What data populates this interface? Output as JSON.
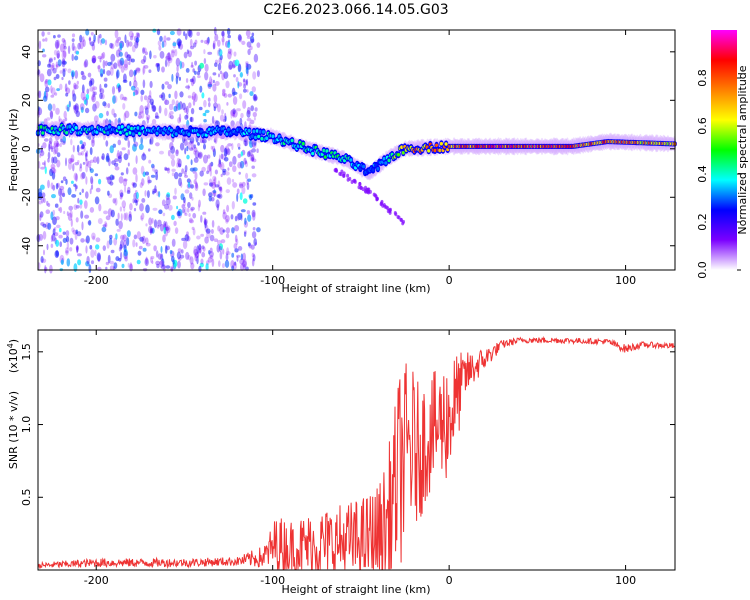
{
  "title": "C2E6.2023.066.14.05.G03",
  "chart_data": [
    {
      "type": "heatmap",
      "xlabel": "Height of straight line (km)",
      "ylabel": "Frequency (Hz)",
      "xlim": [
        -233,
        128
      ],
      "ylim": [
        -50,
        49
      ],
      "x_ticks": [
        -200,
        -100,
        0,
        100
      ],
      "x_tick_labels": [
        "-200",
        "-100",
        "0",
        "100"
      ],
      "y_ticks": [
        -40,
        -20,
        0,
        20,
        40
      ],
      "y_tick_labels": [
        "-40",
        "-20",
        "0",
        "20",
        "40"
      ],
      "colorbar": {
        "label": "Normalized spectral amplitude",
        "range": [
          0,
          1
        ],
        "ticks": [
          0.0,
          0.2,
          0.4,
          0.6,
          0.8
        ],
        "tick_labels": [
          "0.0",
          "0.2",
          "0.4",
          "0.6",
          "0.8"
        ],
        "colors": [
          "#ffffff",
          "#7b00ff",
          "#0000ff",
          "#00ffff",
          "#00ff00",
          "#ffff00",
          "#ff8000",
          "#ff0000",
          "#ff00ff"
        ]
      },
      "ridge": [
        {
          "x": -233,
          "y": 8,
          "amp": 0.45
        },
        {
          "x": -200,
          "y": 8,
          "amp": 0.4
        },
        {
          "x": -160,
          "y": 7,
          "amp": 0.35
        },
        {
          "x": -120,
          "y": 7,
          "amp": 0.35
        },
        {
          "x": -100,
          "y": 5,
          "amp": 0.4
        },
        {
          "x": -80,
          "y": 0,
          "amp": 0.45
        },
        {
          "x": -60,
          "y": -4,
          "amp": 0.45
        },
        {
          "x": -45,
          "y": -10,
          "amp": 0.3
        },
        {
          "x": -35,
          "y": -4,
          "amp": 0.4
        },
        {
          "x": -25,
          "y": 0,
          "amp": 0.75
        },
        {
          "x": 0,
          "y": 1,
          "amp": 0.8
        },
        {
          "x": 30,
          "y": 1,
          "amp": 0.9
        },
        {
          "x": 70,
          "y": 1,
          "amp": 0.85
        },
        {
          "x": 90,
          "y": 3,
          "amp": 0.8
        },
        {
          "x": 128,
          "y": 2,
          "amp": 0.7
        }
      ],
      "branch": [
        {
          "x": -65,
          "y": -8
        },
        {
          "x": -45,
          "y": -18
        },
        {
          "x": -25,
          "y": -31
        }
      ]
    },
    {
      "type": "line",
      "xlabel": "Height of straight line (km)",
      "ylabel": "SNR (10 * v/v)",
      "y_multiplier": "(x10",
      "y_multiplier_exp": "4",
      "xlim": [
        -233,
        128
      ],
      "ylim": [
        0,
        1.65
      ],
      "x_ticks": [
        -200,
        -100,
        0,
        100
      ],
      "x_tick_labels": [
        "-200",
        "-100",
        "0",
        "100"
      ],
      "y_ticks": [
        0.5,
        1.0,
        1.5
      ],
      "y_tick_labels": [
        "0.5",
        "1.0",
        "1.5"
      ],
      "color": "#ee3333",
      "series": [
        {
          "x": [
            -233,
            -200,
            -150,
            -120,
            -105,
            -98,
            -90,
            -70,
            -50,
            -40,
            -35,
            -30,
            -28,
            -22,
            -18,
            -10,
            -5,
            0,
            5,
            10,
            20,
            30,
            40,
            60,
            90,
            100,
            110,
            128
          ],
          "y": [
            0.03,
            0.05,
            0.05,
            0.06,
            0.09,
            0.18,
            0.15,
            0.18,
            0.2,
            0.24,
            0.3,
            0.6,
            0.7,
            0.85,
            0.8,
            0.95,
            1.0,
            1.05,
            1.2,
            1.35,
            1.45,
            1.55,
            1.58,
            1.58,
            1.57,
            1.52,
            1.55,
            1.54
          ],
          "noise_amp": [
            0.02,
            0.03,
            0.03,
            0.03,
            0.08,
            0.2,
            0.2,
            0.25,
            0.3,
            0.35,
            0.5,
            0.6,
            0.7,
            0.6,
            0.5,
            0.4,
            0.4,
            0.45,
            0.3,
            0.15,
            0.08,
            0.03,
            0.02,
            0.02,
            0.02,
            0.03,
            0.02,
            0.02
          ]
        }
      ]
    }
  ]
}
